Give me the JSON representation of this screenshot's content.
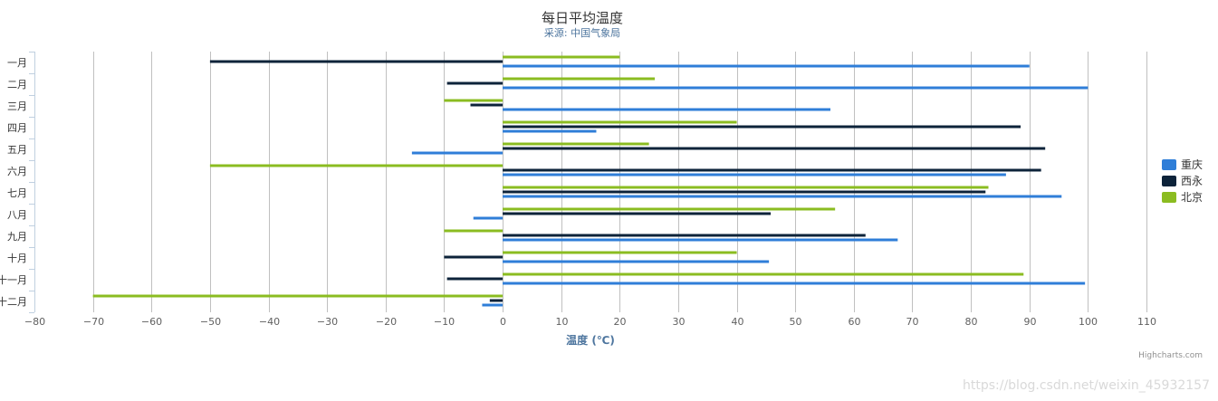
{
  "chart_data": {
    "type": "bar",
    "orientation": "horizontal",
    "title": "每日平均温度",
    "subtitle": "采源: 中国气象局",
    "xlabel": "温度 (℃)",
    "ylabel": "",
    "xlim": [
      -80,
      110
    ],
    "xticks": [
      "−80",
      "−70",
      "−60",
      "−50",
      "−40",
      "−30",
      "−20",
      "−10",
      "0",
      "10",
      "20",
      "30",
      "40",
      "50",
      "60",
      "70",
      "80",
      "90",
      "100",
      "110"
    ],
    "grid": true,
    "legend_position": "right",
    "categories": [
      "一月",
      "二月",
      "三月",
      "四月",
      "五月",
      "六月",
      "七月",
      "八月",
      "九月",
      "十月",
      "十一月",
      "十二月"
    ],
    "series": [
      {
        "name": "重庆",
        "color": "#2f7ed8",
        "values": [
          90,
          100,
          56,
          16,
          -15.5,
          86,
          95.5,
          -5,
          67.5,
          45.5,
          99.5,
          -3.5
        ]
      },
      {
        "name": "西永",
        "color": "#0d233a",
        "values": [
          -50,
          -9.5,
          -5.5,
          88.5,
          92.7,
          92,
          82.5,
          45.8,
          62,
          -10,
          -9.5,
          -2.2
        ]
      },
      {
        "name": "北京",
        "color": "#8bbc21",
        "values": [
          20,
          26,
          -10,
          40,
          25,
          -50,
          83,
          56.8,
          -10,
          40,
          89,
          -70
        ]
      }
    ]
  },
  "credits": "Highcharts.com",
  "watermark": "https://blog.csdn.net/weixin_45932157"
}
